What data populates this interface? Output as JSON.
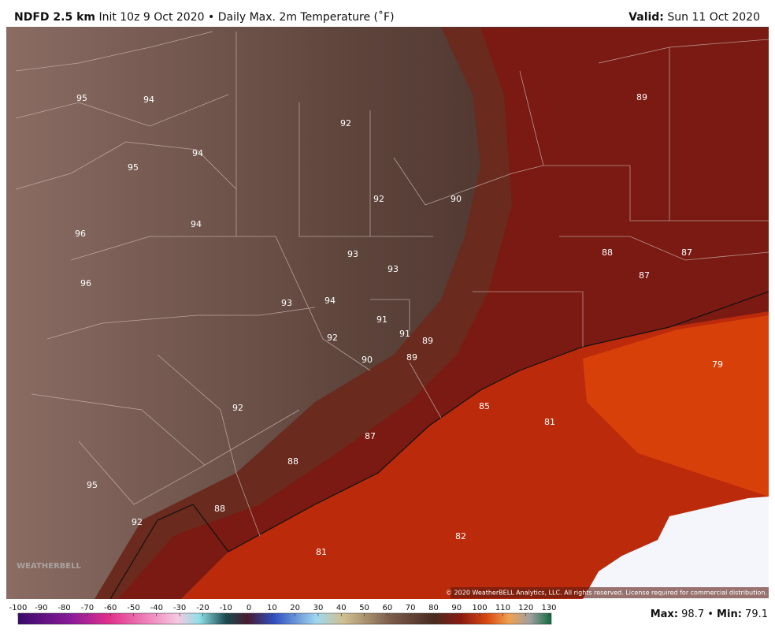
{
  "header": {
    "model": "NDFD 2.5 km",
    "init": "Init 10z 9 Oct 2020",
    "separator": "•",
    "product": "Daily Max. 2m Temperature (˚F)",
    "valid_label": "Valid:",
    "valid_value": "Sun 11 Oct 2020"
  },
  "map": {
    "labels": [
      95,
      94,
      92,
      89,
      94,
      95,
      92,
      90,
      96,
      94,
      93,
      93,
      88,
      87,
      87,
      96,
      93,
      94,
      91,
      91,
      89,
      92,
      90,
      89,
      79,
      92,
      85,
      81,
      87,
      88,
      95,
      88,
      92,
      82,
      81
    ],
    "logo": "WEATHERBELL",
    "copyright": "© 2020 WeatherBELL Analytics, LLC. All rights reserved. License required for commercial distribution."
  },
  "colorbar": {
    "ticks": [
      -100,
      -90,
      -80,
      -70,
      -60,
      -50,
      -40,
      -30,
      -20,
      -10,
      0,
      10,
      20,
      30,
      40,
      50,
      60,
      70,
      80,
      90,
      100,
      110,
      120,
      130
    ]
  },
  "footer": {
    "max_label": "Max:",
    "max_value": 98.7,
    "separator": "•",
    "min_label": "Min:",
    "min_value": 79.1
  }
}
